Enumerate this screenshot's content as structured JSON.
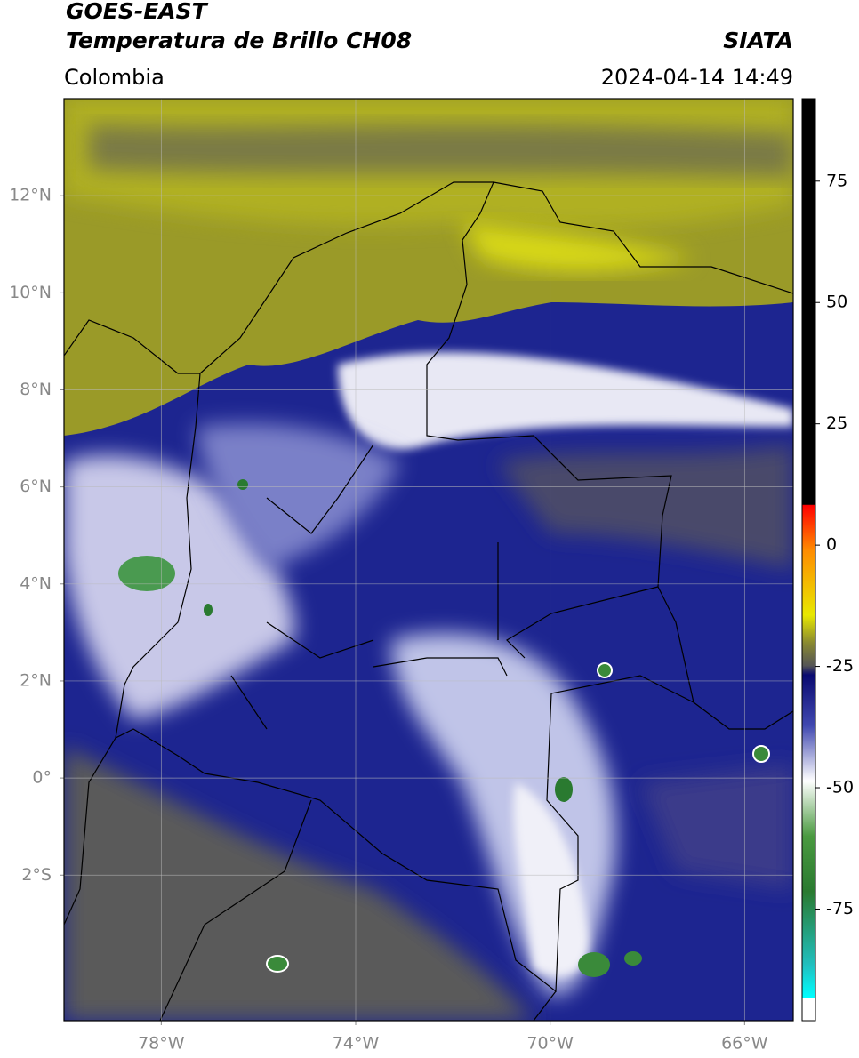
{
  "header": {
    "satellite": "GOES-EAST",
    "product": "Temperatura de Brillo CH08",
    "agency": "SIATA",
    "region": "Colombia",
    "datetime": "2024-04-14 14:49"
  },
  "map": {
    "lonlim": [
      -80,
      -65
    ],
    "latlim": [
      -5,
      14
    ],
    "xticks": [
      {
        "value": -78,
        "label": "78°W"
      },
      {
        "value": -74,
        "label": "74°W"
      },
      {
        "value": -70,
        "label": "70°W"
      },
      {
        "value": -66,
        "label": "66°W"
      }
    ],
    "yticks": [
      {
        "value": 12,
        "label": "12°N"
      },
      {
        "value": 10,
        "label": "10°N"
      },
      {
        "value": 8,
        "label": "8°N"
      },
      {
        "value": 6,
        "label": "6°N"
      },
      {
        "value": 4,
        "label": "4°N"
      },
      {
        "value": 2,
        "label": "2°N"
      },
      {
        "value": 0,
        "label": "0°"
      },
      {
        "value": -2,
        "label": "2°S"
      }
    ]
  },
  "colorbar": {
    "lim": [
      -98,
      92
    ],
    "ticks": [
      75,
      50,
      25,
      0,
      -25,
      -50,
      -75
    ]
  }
}
